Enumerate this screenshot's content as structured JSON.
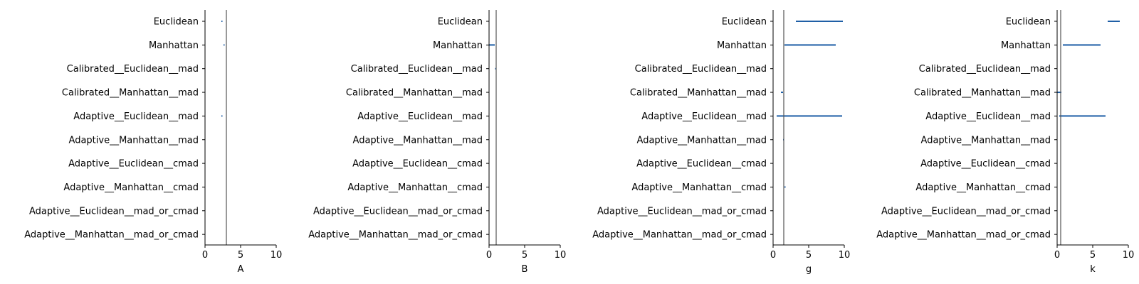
{
  "chart_data": [
    {
      "type": "interval",
      "xlabel": "A",
      "xlim": [
        0,
        10
      ],
      "xticks": [
        "0",
        "5",
        "10"
      ],
      "categories": [
        "Euclidean",
        "Manhattan",
        "Calibrated__Euclidean__mad",
        "Calibrated__Manhattan__mad",
        "Adaptive__Euclidean__mad",
        "Adaptive__Manhattan__mad",
        "Adaptive__Euclidean__cmad",
        "Adaptive__Manhattan__cmad",
        "Adaptive__Euclidean__mad_or_cmad",
        "Adaptive__Manhattan__mad_or_cmad"
      ],
      "reference_line": 3.0,
      "intervals": [
        [
          2.3,
          2.45
        ],
        [
          2.6,
          2.75
        ],
        null,
        null,
        [
          2.3,
          2.45
        ],
        null,
        null,
        null,
        null,
        null
      ],
      "color": "#1f5fa6",
      "reference_color": "#555555",
      "grid": false
    },
    {
      "type": "interval",
      "xlabel": "B",
      "xlim": [
        0,
        10
      ],
      "xticks": [
        "0",
        "5",
        "10"
      ],
      "categories": [
        "Euclidean",
        "Manhattan",
        "Calibrated__Euclidean__mad",
        "Calibrated__Manhattan__mad",
        "Adaptive__Euclidean__mad",
        "Adaptive__Manhattan__mad",
        "Adaptive__Euclidean__cmad",
        "Adaptive__Manhattan__cmad",
        "Adaptive__Euclidean__mad_or_cmad",
        "Adaptive__Manhattan__mad_or_cmad"
      ],
      "reference_line": 1.0,
      "intervals": [
        null,
        [
          0.0,
          0.8
        ],
        [
          0.85,
          0.95
        ],
        null,
        null,
        null,
        null,
        null,
        null,
        null
      ],
      "color": "#1f5fa6",
      "reference_color": "#555555",
      "grid": false
    },
    {
      "type": "interval",
      "xlabel": "g",
      "xlim": [
        0,
        10
      ],
      "xticks": [
        "0",
        "5",
        "10"
      ],
      "categories": [
        "Euclidean",
        "Manhattan",
        "Calibrated__Euclidean__mad",
        "Calibrated__Manhattan__mad",
        "Adaptive__Euclidean__mad",
        "Adaptive__Manhattan__mad",
        "Adaptive__Euclidean__cmad",
        "Adaptive__Manhattan__cmad",
        "Adaptive__Euclidean__mad_or_cmad",
        "Adaptive__Manhattan__mad_or_cmad"
      ],
      "reference_line": 1.5,
      "intervals": [
        [
          3.2,
          9.8
        ],
        [
          1.6,
          8.8
        ],
        null,
        [
          1.1,
          1.4
        ],
        [
          0.5,
          9.7
        ],
        [
          1.4,
          1.55
        ],
        null,
        [
          1.6,
          1.75
        ],
        null,
        null
      ],
      "color": "#1f5fa6",
      "reference_color": "#555555",
      "grid": false
    },
    {
      "type": "interval",
      "xlabel": "k",
      "xlim": [
        0,
        10
      ],
      "xticks": [
        "0",
        "5",
        "10"
      ],
      "categories": [
        "Euclidean",
        "Manhattan",
        "Calibrated__Euclidean__mad",
        "Calibrated__Manhattan__mad",
        "Adaptive__Euclidean__mad",
        "Adaptive__Manhattan__mad",
        "Adaptive__Euclidean__cmad",
        "Adaptive__Manhattan__cmad",
        "Adaptive__Euclidean__mad_or_cmad",
        "Adaptive__Manhattan__mad_or_cmad"
      ],
      "reference_line": 0.5,
      "intervals": [
        [
          7.1,
          8.8
        ],
        [
          0.8,
          6.1
        ],
        null,
        [
          0.0,
          0.6
        ],
        [
          0.3,
          6.8
        ],
        null,
        null,
        null,
        null,
        null
      ],
      "color": "#1f5fa6",
      "reference_color": "#555555",
      "grid": false
    }
  ]
}
